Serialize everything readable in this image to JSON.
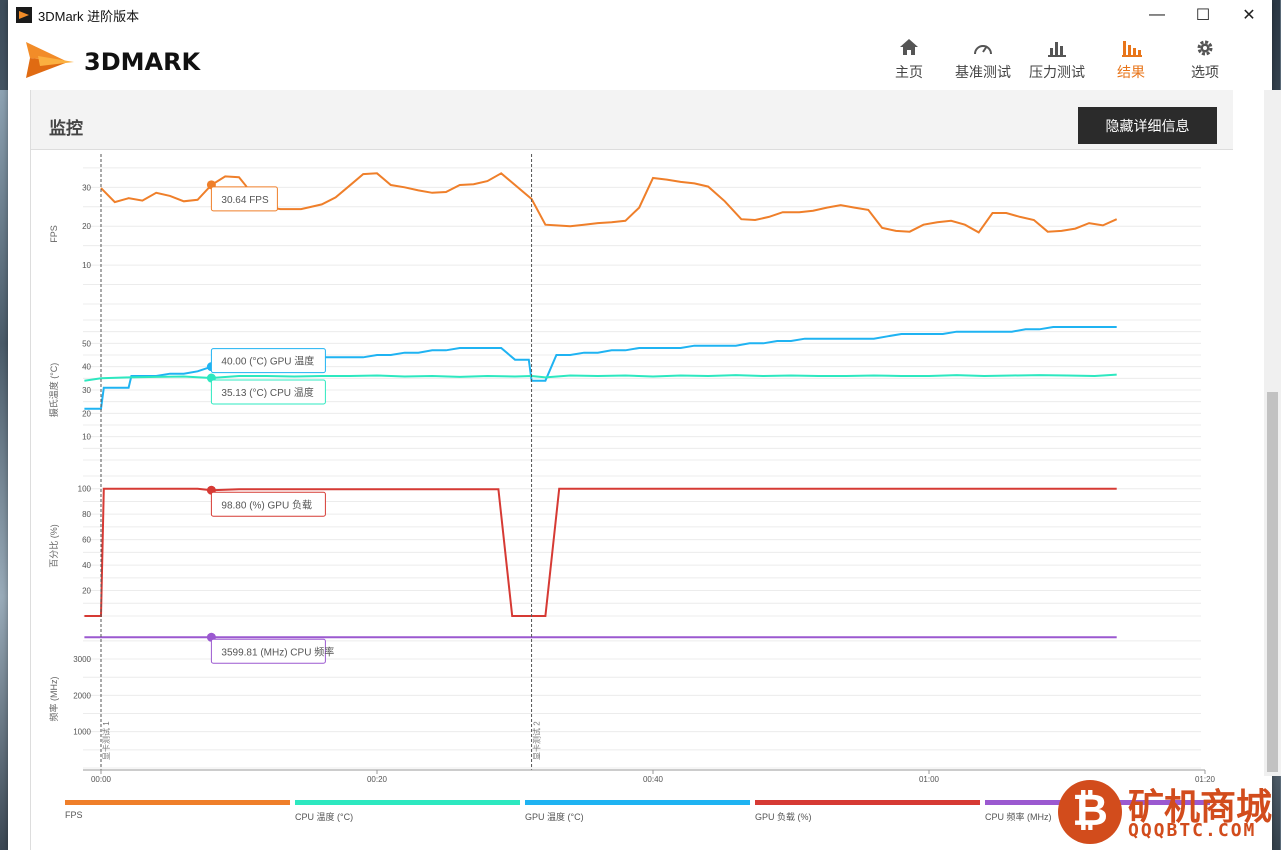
{
  "window": {
    "title": "3DMark 进阶版本",
    "minimize": "—",
    "maximize": "☐",
    "close": "✕"
  },
  "header": {
    "logo_text": "3DMARK",
    "nav": [
      {
        "label": "主页",
        "icon": "home-icon"
      },
      {
        "label": "基准测试",
        "icon": "gauge-icon"
      },
      {
        "label": "压力测试",
        "icon": "bar-chart-icon"
      },
      {
        "label": "结果",
        "icon": "results-icon",
        "active": true
      },
      {
        "label": "选项",
        "icon": "gear-icon"
      }
    ]
  },
  "section": {
    "title": "监控",
    "hide_button": "隐藏详细信息"
  },
  "colors": {
    "fps": "#ef7f2a",
    "cpu_temp": "#2de8c0",
    "gpu_temp": "#1fb3f2",
    "gpu_load": "#d63a34",
    "cpu_freq": "#9b59d0",
    "accent": "#e8751a"
  },
  "chart_data": {
    "type": "line",
    "x_ticks": [
      "00:00",
      "00:20",
      "00:40",
      "01:00",
      "01:20"
    ],
    "x_range_seconds": [
      0,
      80
    ],
    "markers": [
      {
        "t": 0,
        "label": "显卡测试 1"
      },
      {
        "t": 31.2,
        "label": "显卡测试 2"
      }
    ],
    "panels": [
      {
        "ylabel": "FPS",
        "ylim": [
          0,
          36
        ],
        "yticks": [
          10,
          20,
          30
        ],
        "series": [
          {
            "key": "fps",
            "points": [
              [
                0,
                29.8
              ],
              [
                1,
                26.2
              ],
              [
                2,
                27.2
              ],
              [
                3,
                26.6
              ],
              [
                4,
                28.6
              ],
              [
                5,
                27.8
              ],
              [
                6,
                26.4
              ],
              [
                7,
                26.8
              ],
              [
                8,
                30.6
              ],
              [
                9,
                32.8
              ],
              [
                10,
                32.6
              ],
              [
                10.5,
                30.4
              ],
              [
                11,
                27.6
              ],
              [
                12,
                25
              ],
              [
                13,
                24.4
              ],
              [
                14.5,
                24.4
              ],
              [
                16,
                25.6
              ],
              [
                17,
                27.4
              ],
              [
                18,
                30.4
              ],
              [
                19,
                33.4
              ],
              [
                20,
                33.6
              ],
              [
                21,
                30.6
              ],
              [
                22,
                30
              ],
              [
                23,
                29.2
              ],
              [
                24,
                28.6
              ],
              [
                25,
                28.8
              ],
              [
                26,
                30.6
              ],
              [
                27,
                30.8
              ],
              [
                28,
                31.6
              ],
              [
                29,
                33.6
              ],
              [
                31.2,
                27
              ],
              [
                32.2,
                20.4
              ],
              [
                33,
                20.2
              ],
              [
                34,
                20
              ],
              [
                35,
                20.4
              ],
              [
                36,
                20.8
              ],
              [
                37,
                21
              ],
              [
                38,
                21.4
              ],
              [
                39,
                24.8
              ],
              [
                40,
                32.4
              ],
              [
                41,
                32
              ],
              [
                42,
                31.4
              ],
              [
                43,
                31
              ],
              [
                44,
                30.2
              ],
              [
                45.2,
                26.4
              ],
              [
                46.4,
                21.8
              ],
              [
                47.4,
                21.6
              ],
              [
                48.4,
                22.4
              ],
              [
                49.4,
                23.6
              ],
              [
                50.6,
                23.6
              ],
              [
                51.6,
                24
              ],
              [
                52.6,
                24.8
              ],
              [
                53.6,
                25.4
              ],
              [
                54.6,
                24.8
              ],
              [
                55.6,
                24.2
              ],
              [
                56.6,
                19.6
              ],
              [
                57.6,
                18.8
              ],
              [
                58.6,
                18.6
              ],
              [
                59.6,
                20.4
              ],
              [
                60.6,
                21
              ],
              [
                61.6,
                21.4
              ],
              [
                62.6,
                20.4
              ],
              [
                63.6,
                18.4
              ],
              [
                64.6,
                23.4
              ],
              [
                65.6,
                23.4
              ],
              [
                66.6,
                22.4
              ],
              [
                67.6,
                21.6
              ],
              [
                68.6,
                18.6
              ],
              [
                69.6,
                18.8
              ],
              [
                70.6,
                19.4
              ],
              [
                71.6,
                20.8
              ],
              [
                72.6,
                20.2
              ],
              [
                73.6,
                21.8
              ]
            ]
          }
        ],
        "tooltip": {
          "series": "fps",
          "t": 8,
          "value": 30.64,
          "text": "30.64 FPS"
        }
      },
      {
        "ylabel": "摄氏温度 (°C)",
        "ylim": [
          0,
          60
        ],
        "yticks": [
          10,
          20,
          30,
          40,
          50
        ],
        "series": [
          {
            "key": "gpu_temp",
            "points": [
              [
                -1.2,
                22
              ],
              [
                0,
                22
              ],
              [
                0.2,
                31
              ],
              [
                1,
                31
              ],
              [
                2,
                31
              ],
              [
                2.2,
                36
              ],
              [
                3,
                36
              ],
              [
                4,
                36
              ],
              [
                5,
                37
              ],
              [
                6,
                37
              ],
              [
                7,
                38
              ],
              [
                8,
                40
              ],
              [
                9,
                40
              ],
              [
                10,
                41
              ],
              [
                11,
                42
              ],
              [
                12,
                43
              ],
              [
                14,
                43
              ],
              [
                16,
                44
              ],
              [
                18,
                44
              ],
              [
                19,
                44
              ],
              [
                20,
                45
              ],
              [
                21,
                45
              ],
              [
                22,
                46
              ],
              [
                23,
                46
              ],
              [
                24,
                47
              ],
              [
                25,
                47
              ],
              [
                26,
                48
              ],
              [
                27,
                48
              ],
              [
                28,
                48
              ],
              [
                29,
                48
              ],
              [
                30,
                43
              ],
              [
                31,
                43
              ],
              [
                31.2,
                34
              ],
              [
                32.2,
                34
              ],
              [
                33,
                45
              ],
              [
                34,
                45
              ],
              [
                35,
                46
              ],
              [
                36,
                46
              ],
              [
                37,
                47
              ],
              [
                38,
                47
              ],
              [
                39,
                48
              ],
              [
                41,
                48
              ],
              [
                42,
                48
              ],
              [
                43,
                49
              ],
              [
                45,
                49
              ],
              [
                46,
                49
              ],
              [
                47,
                50
              ],
              [
                48,
                50
              ],
              [
                49,
                51
              ],
              [
                50,
                51
              ],
              [
                51,
                52
              ],
              [
                52,
                52
              ],
              [
                55,
                52
              ],
              [
                56,
                52
              ],
              [
                57,
                53
              ],
              [
                58,
                54
              ],
              [
                60,
                54
              ],
              [
                61,
                54
              ],
              [
                62,
                55
              ],
              [
                65,
                55
              ],
              [
                66,
                55
              ],
              [
                67,
                56
              ],
              [
                68,
                56
              ],
              [
                69,
                57
              ],
              [
                72,
                57
              ],
              [
                73.6,
                57
              ]
            ]
          },
          {
            "key": "cpu_temp",
            "points": [
              [
                -1.2,
                34
              ],
              [
                0,
                35
              ],
              [
                2,
                35.4
              ],
              [
                4,
                35.6
              ],
              [
                6,
                35.8
              ],
              [
                8,
                35.13
              ],
              [
                10,
                36
              ],
              [
                12,
                36
              ],
              [
                14,
                35.8
              ],
              [
                16,
                36
              ],
              [
                18,
                36
              ],
              [
                20,
                36.2
              ],
              [
                22,
                35.8
              ],
              [
                24,
                36
              ],
              [
                26,
                35.6
              ],
              [
                28,
                36
              ],
              [
                30,
                35.8
              ],
              [
                31.2,
                36
              ],
              [
                32.2,
                35.4
              ],
              [
                34,
                36.2
              ],
              [
                36,
                36
              ],
              [
                38,
                36.2
              ],
              [
                40,
                35.8
              ],
              [
                42,
                36.2
              ],
              [
                44,
                36
              ],
              [
                46,
                36.4
              ],
              [
                48,
                36
              ],
              [
                50,
                36.2
              ],
              [
                52,
                36
              ],
              [
                54,
                36
              ],
              [
                56,
                36.2
              ],
              [
                58,
                36
              ],
              [
                60,
                36
              ],
              [
                62,
                36.4
              ],
              [
                64,
                36
              ],
              [
                66,
                36.2
              ],
              [
                68,
                36.4
              ],
              [
                70,
                36.2
              ],
              [
                72,
                36
              ],
              [
                73.6,
                36.6
              ]
            ]
          }
        ],
        "tooltips": [
          {
            "series": "gpu_temp",
            "t": 8,
            "value": 40.0,
            "text": "40.00 (°C) GPU 温度"
          },
          {
            "series": "cpu_temp",
            "t": 8,
            "value": 35.13,
            "text": "35.13 (°C) CPU 温度"
          }
        ]
      },
      {
        "ylabel": "百分比 (%)",
        "ylim": [
          0,
          110
        ],
        "yticks": [
          20,
          40,
          60,
          80,
          100
        ],
        "series": [
          {
            "key": "gpu_load",
            "points": [
              [
                -1.2,
                0
              ],
              [
                0,
                0
              ],
              [
                0.2,
                100
              ],
              [
                7,
                100
              ],
              [
                8,
                98.8
              ],
              [
                10,
                99.6
              ],
              [
                28.8,
                99.6
              ],
              [
                29.8,
                0
              ],
              [
                31,
                0
              ],
              [
                32.2,
                0
              ],
              [
                33.2,
                100
              ],
              [
                73.6,
                100
              ]
            ]
          }
        ],
        "tooltip": {
          "series": "gpu_load",
          "t": 8,
          "value": 98.8,
          "text": "98.80 (%) GPU 负载"
        }
      },
      {
        "ylabel": "频率 (MHz)",
        "ylim": [
          0,
          3800
        ],
        "yticks": [
          1000,
          2000,
          3000
        ],
        "series": [
          {
            "key": "cpu_freq",
            "points": [
              [
                -1.2,
                3599.81
              ],
              [
                73.6,
                3599.81
              ]
            ]
          }
        ],
        "tooltip": {
          "series": "cpu_freq",
          "t": 8,
          "value": 3599.81,
          "text": "3599.81 (MHz) CPU 频率"
        }
      }
    ],
    "legend": [
      {
        "key": "fps",
        "label": "FPS"
      },
      {
        "key": "cpu_temp",
        "label": "CPU 温度 (°C)"
      },
      {
        "key": "gpu_temp",
        "label": "GPU 温度 (°C)"
      },
      {
        "key": "gpu_load",
        "label": "GPU 负载 (%)"
      },
      {
        "key": "cpu_freq",
        "label": "CPU 频率 (MHz)"
      }
    ]
  },
  "watermark": {
    "text": "矿机商城",
    "url": "QQQBTC.COM"
  }
}
